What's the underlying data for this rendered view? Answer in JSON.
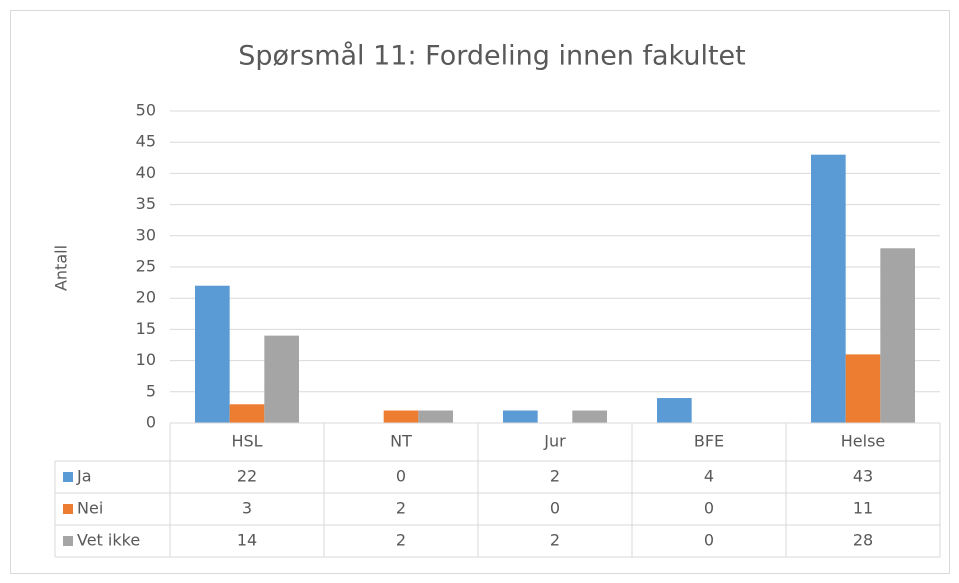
{
  "chart_data": {
    "type": "bar",
    "title": "Spørsmål 11: Fordeling innen fakultet",
    "y_label": "Antall",
    "categories": [
      "HSL",
      "NT",
      "Jur",
      "BFE",
      "Helse"
    ],
    "series": [
      {
        "name": "Ja",
        "color": "#5b9bd5",
        "values": [
          22,
          0,
          2,
          4,
          43
        ]
      },
      {
        "name": "Nei",
        "color": "#ed7d31",
        "values": [
          3,
          2,
          0,
          0,
          11
        ]
      },
      {
        "name": "Vet ikke",
        "color": "#a5a5a5",
        "values": [
          14,
          2,
          2,
          0,
          28
        ]
      }
    ],
    "ylim": [
      0,
      50
    ],
    "yticks": [
      0,
      5,
      10,
      15,
      20,
      25,
      30,
      35,
      40,
      45,
      50
    ],
    "grid": true,
    "data_table": true
  }
}
